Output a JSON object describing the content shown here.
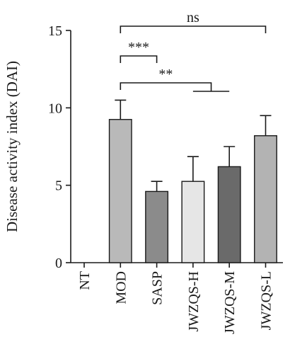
{
  "chart_data": {
    "type": "bar",
    "title": "",
    "xlabel": "",
    "ylabel": "Disease activity index (DAI)",
    "ylim": [
      0,
      15
    ],
    "yticks": [
      0,
      5,
      10,
      15
    ],
    "categories": [
      "NT",
      "MOD",
      "SASP",
      "JWZQS-H",
      "JWZQS-M",
      "JWZQS-L"
    ],
    "values": [
      0,
      9.25,
      4.6,
      5.25,
      6.2,
      8.2
    ],
    "errors": [
      0,
      1.25,
      0.65,
      1.6,
      1.3,
      1.3
    ],
    "bar_colors": [
      "#bcbcbc",
      "#b9b9b9",
      "#8b8b8b",
      "#e6e6e6",
      "#6a6a6a",
      "#b3b3b3"
    ],
    "grid": false,
    "significance": [
      {
        "label": "ns",
        "from": "MOD",
        "to": [
          "JWZQS-L"
        ]
      },
      {
        "label": "***",
        "from": "MOD",
        "to": [
          "SASP"
        ]
      },
      {
        "label": "**",
        "from": "MOD",
        "to": [
          "JWZQS-H",
          "JWZQS-M"
        ]
      }
    ]
  }
}
